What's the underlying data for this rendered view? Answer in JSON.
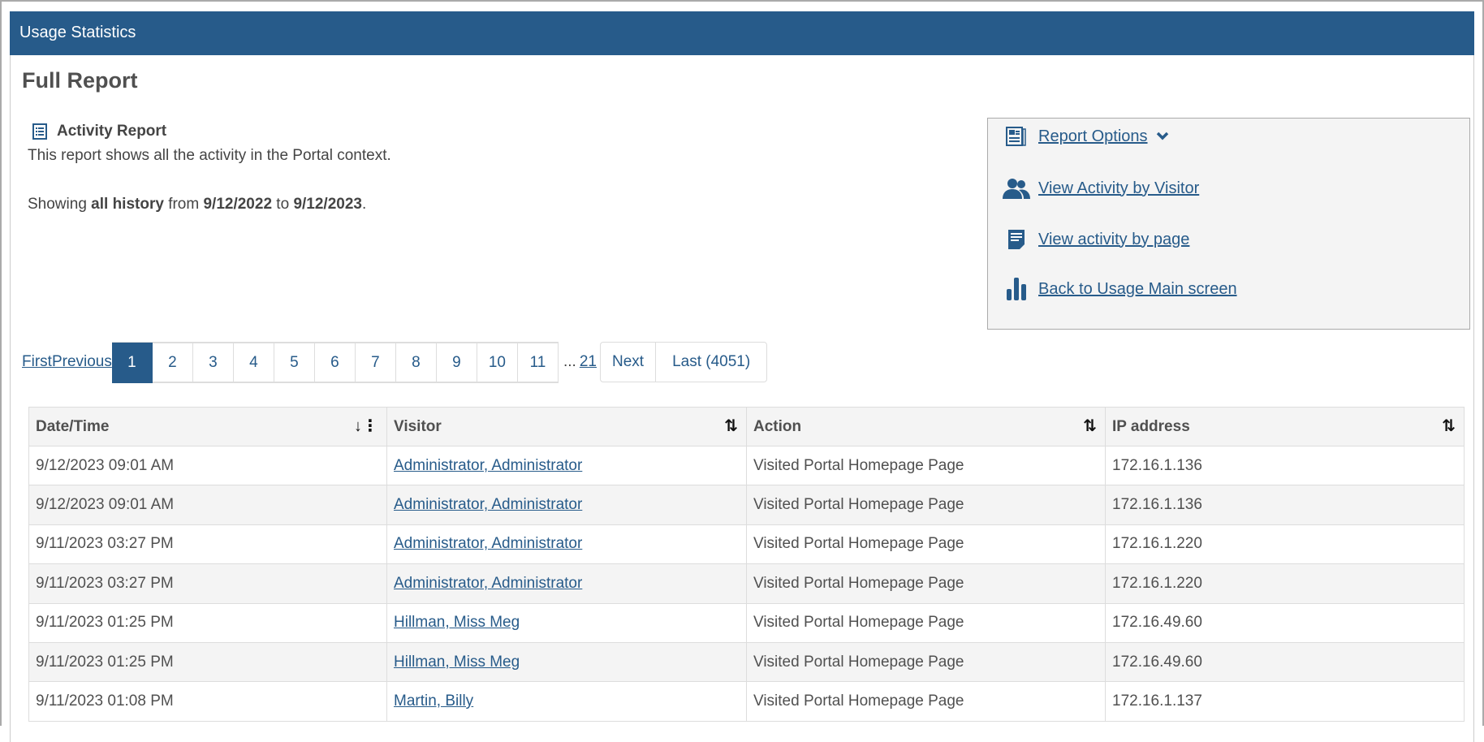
{
  "header": {
    "title": "Usage Statistics"
  },
  "page_title": "Full Report",
  "report": {
    "heading": "Activity Report",
    "description": "This report shows all the activity in the Portal context.",
    "showing_prefix": "Showing",
    "range_label": "all history",
    "from_word": "from",
    "start": "9/12/2022",
    "to_word": "to",
    "end": "9/12/2023",
    "end_punct": "."
  },
  "options": {
    "report_options": "Report Options",
    "by_visitor": "View Activity by Visitor",
    "by_page": "View activity by page",
    "back": "Back to Usage Main screen"
  },
  "pagination": {
    "first": "First",
    "previous": "Previous",
    "pages": [
      "1",
      "2",
      "3",
      "4",
      "5",
      "6",
      "7",
      "8",
      "9",
      "10",
      "11"
    ],
    "current": "1",
    "ellipsis": "...",
    "last_page": "21",
    "next": "Next",
    "last": "Last (4051)"
  },
  "table": {
    "columns": [
      "Date/Time",
      "Visitor",
      "Action",
      "IP address"
    ],
    "rows": [
      [
        "9/12/2023 09:01 AM",
        "Administrator, Administrator",
        "Visited Portal Homepage Page",
        "172.16.1.136"
      ],
      [
        "9/12/2023 09:01 AM",
        "Administrator, Administrator",
        "Visited Portal Homepage Page",
        "172.16.1.136"
      ],
      [
        "9/11/2023 03:27 PM",
        "Administrator, Administrator",
        "Visited Portal Homepage Page",
        "172.16.1.220"
      ],
      [
        "9/11/2023 03:27 PM",
        "Administrator, Administrator",
        "Visited Portal Homepage Page",
        "172.16.1.220"
      ],
      [
        "9/11/2023 01:25 PM",
        "Hillman, Miss Meg",
        "Visited Portal Homepage Page",
        "172.16.49.60"
      ],
      [
        "9/11/2023 01:25 PM",
        "Hillman, Miss Meg",
        "Visited Portal Homepage Page",
        "172.16.49.60"
      ],
      [
        "9/11/2023 01:08 PM",
        "Martin, Billy",
        "Visited Portal Homepage Page",
        "172.16.1.137"
      ]
    ]
  },
  "colors": {
    "brand": "#275b8a",
    "alt_row": "#f4f4f4"
  }
}
